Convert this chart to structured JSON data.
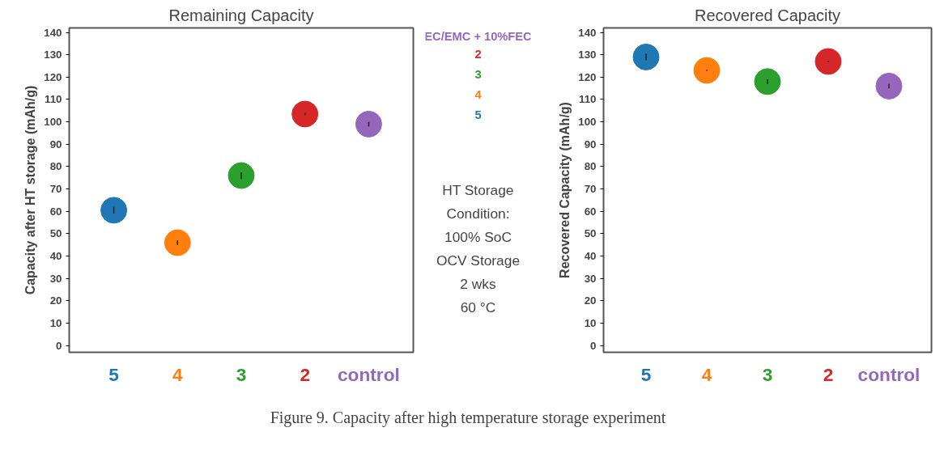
{
  "chart_data": [
    {
      "type": "scatter",
      "title": "Remaining Capacity",
      "ylabel": "Capacity after HT storage (mAh/g)",
      "categories": [
        "5",
        "4",
        "3",
        "2",
        "control"
      ],
      "series": [
        {
          "name": "EC/EMC + 10%FEC",
          "color": "#9467bd",
          "values": [
            null,
            null,
            null,
            null,
            99
          ],
          "errors": [
            null,
            null,
            null,
            null,
            1
          ]
        },
        {
          "name": "2",
          "color": "#d62728",
          "values": [
            null,
            null,
            null,
            103.5,
            null
          ],
          "errors": [
            null,
            null,
            null,
            0.5,
            null
          ]
        },
        {
          "name": "3",
          "color": "#2ca02c",
          "values": [
            null,
            null,
            76,
            null,
            null
          ],
          "errors": [
            null,
            null,
            1.5,
            null,
            null
          ]
        },
        {
          "name": "4",
          "color": "#ff7f0e",
          "values": [
            null,
            46,
            null,
            null,
            null
          ],
          "errors": [
            null,
            1,
            null,
            null,
            null
          ]
        },
        {
          "name": "5",
          "color": "#1f77b4",
          "values": [
            60.5,
            null,
            null,
            null,
            null
          ],
          "errors": [
            1.5,
            null,
            null,
            null,
            null
          ]
        }
      ],
      "ylim": [
        -3,
        142
      ],
      "yticks": [
        0,
        10,
        20,
        30,
        40,
        50,
        60,
        70,
        80,
        90,
        100,
        110,
        120,
        130,
        140
      ],
      "marker": "circle",
      "legend": "right",
      "annotations": [
        "HT Storage\nCondition:\n100% SoC\nOCV Storage\n2 wks\n60 °C",
        "Figure 9.  Capacity after high temperature storage experiment"
      ]
    },
    {
      "type": "scatter",
      "title": "Recovered Capacity",
      "ylabel": "Recovered Capacity (mAh/g)",
      "categories": [
        "5",
        "4",
        "3",
        "2",
        "control"
      ],
      "series": [
        {
          "color": "#9467bd",
          "values": [
            null,
            null,
            null,
            null,
            116
          ],
          "errors": [
            null,
            null,
            null,
            null,
            1
          ]
        },
        {
          "color": "#d62728",
          "values": [
            null,
            null,
            null,
            127,
            null
          ],
          "errors": [
            null,
            null,
            null,
            0.3,
            null
          ]
        },
        {
          "color": "#2ca02c",
          "values": [
            null,
            null,
            118,
            null,
            null
          ],
          "errors": [
            null,
            null,
            1,
            null,
            null
          ]
        },
        {
          "color": "#ff7f0e",
          "values": [
            null,
            123,
            null,
            null,
            null
          ],
          "errors": [
            null,
            0.3,
            null,
            null,
            null
          ]
        },
        {
          "color": "#1f77b4",
          "values": [
            129,
            null,
            null,
            null,
            null
          ],
          "errors": [
            1.5,
            null,
            null,
            null,
            null
          ]
        }
      ],
      "ylim": [
        -3,
        142
      ],
      "yticks": [
        0,
        10,
        20,
        30,
        40,
        50,
        60,
        70,
        80,
        90,
        100,
        110,
        120,
        130,
        140
      ],
      "marker": "circle"
    }
  ]
}
